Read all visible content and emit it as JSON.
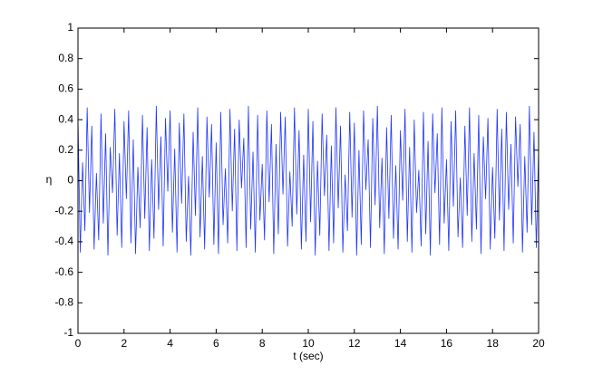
{
  "chart_data": {
    "type": "line",
    "xlabel": "t (sec)",
    "ylabel": "η",
    "xlim": [
      0,
      20
    ],
    "xticks": [
      0,
      2,
      4,
      6,
      8,
      10,
      12,
      14,
      16,
      18,
      20
    ],
    "ylim": [
      -1,
      1
    ],
    "yticks": [
      -1,
      -0.8,
      -0.6,
      -0.4,
      -0.2,
      0,
      0.2,
      0.4,
      0.6,
      0.8,
      1
    ],
    "x": [
      0,
      0.1,
      0.2,
      0.3,
      0.4,
      0.5,
      0.6,
      0.7,
      0.8,
      0.9,
      1,
      1.1,
      1.2,
      1.3,
      1.4,
      1.5,
      1.6,
      1.7,
      1.8,
      1.9,
      2,
      2.1,
      2.2,
      2.3,
      2.4,
      2.5,
      2.6,
      2.7,
      2.8,
      2.9,
      3,
      3.1,
      3.2,
      3.3,
      3.4,
      3.5,
      3.6,
      3.7,
      3.8,
      3.9,
      4,
      4.1,
      4.2,
      4.3,
      4.4,
      4.5,
      4.6,
      4.7,
      4.8,
      4.9,
      5,
      5.1,
      5.2,
      5.3,
      5.4,
      5.5,
      5.6,
      5.7,
      5.8,
      5.9,
      6,
      6.1,
      6.2,
      6.3,
      6.4,
      6.5,
      6.6,
      6.7,
      6.8,
      6.9,
      7,
      7.1,
      7.2,
      7.3,
      7.4,
      7.5,
      7.6,
      7.7,
      7.8,
      7.9,
      8,
      8.1,
      8.2,
      8.3,
      8.4,
      8.5,
      8.6,
      8.7,
      8.8,
      8.9,
      9,
      9.1,
      9.2,
      9.3,
      9.4,
      9.5,
      9.6,
      9.7,
      9.8,
      9.9,
      10,
      10.1,
      10.2,
      10.3,
      10.4,
      10.5,
      10.6,
      10.7,
      10.8,
      10.9,
      11,
      11.1,
      11.2,
      11.3,
      11.4,
      11.5,
      11.6,
      11.7,
      11.8,
      11.9,
      12,
      12.1,
      12.2,
      12.3,
      12.4,
      12.5,
      12.6,
      12.7,
      12.8,
      12.9,
      13,
      13.1,
      13.2,
      13.3,
      13.4,
      13.5,
      13.6,
      13.7,
      13.8,
      13.9,
      14,
      14.1,
      14.2,
      14.3,
      14.4,
      14.5,
      14.6,
      14.7,
      14.8,
      14.9,
      15,
      15.1,
      15.2,
      15.3,
      15.4,
      15.5,
      15.6,
      15.7,
      15.8,
      15.9,
      16,
      16.1,
      16.2,
      16.3,
      16.4,
      16.5,
      16.6,
      16.7,
      16.8,
      16.9,
      17,
      17.1,
      17.2,
      17.3,
      17.4,
      17.5,
      17.6,
      17.7,
      17.8,
      17.9,
      18,
      18.1,
      18.2,
      18.3,
      18.4,
      18.5,
      18.6,
      18.7,
      18.8,
      18.9,
      19,
      19.1,
      19.2,
      19.3,
      19.4,
      19.5,
      19.6,
      19.7,
      19.8,
      19.9,
      20
    ],
    "series": [
      {
        "color": "#1f35ff",
        "values": [
          0.41,
          -0.47,
          0.12,
          -0.33,
          0.48,
          -0.21,
          0.36,
          -0.45,
          0.05,
          -0.39,
          0.44,
          -0.28,
          0.31,
          -0.49,
          0.22,
          -0.08,
          0.47,
          -0.36,
          0.18,
          -0.44,
          0.39,
          -0.12,
          0.46,
          -0.41,
          0.27,
          -0.48,
          0.09,
          -0.31,
          0.43,
          -0.25,
          0.35,
          -0.46,
          0.14,
          -0.38,
          0.49,
          -0.19,
          0.29,
          -0.43,
          0.41,
          -0.07,
          0.46,
          -0.34,
          0.21,
          -0.47,
          0.38,
          -0.15,
          0.44,
          -0.4,
          0.03,
          -0.49,
          0.32,
          -0.23,
          0.48,
          -0.37,
          0.16,
          -0.45,
          0.42,
          -0.11,
          0.37,
          -0.42,
          0.25,
          -0.48,
          0.45,
          -0.29,
          0.08,
          -0.41,
          0.47,
          -0.2,
          0.34,
          -0.46,
          0.4,
          -0.05,
          0.28,
          -0.44,
          0.49,
          -0.32,
          0.19,
          -0.47,
          0.43,
          -0.26,
          0.11,
          -0.39,
          0.46,
          -0.14,
          0.37,
          -0.48,
          0.24,
          -0.35,
          0.45,
          -0.09,
          0.42,
          -0.43,
          0.06,
          -0.3,
          0.48,
          -0.22,
          0.33,
          -0.45,
          0.17,
          -0.4,
          0.47,
          -0.27,
          0.39,
          -0.49,
          0.13,
          -0.36,
          0.44,
          -0.1,
          0.3,
          -0.46,
          0.23,
          -0.41,
          0.48,
          -0.18,
          0.36,
          -0.47,
          0.04,
          -0.33,
          0.45,
          -0.24,
          0.38,
          -0.49,
          0.2,
          -0.42,
          0.46,
          -0.06,
          0.27,
          -0.44,
          0.41,
          -0.16,
          0.49,
          -0.31,
          0.15,
          -0.48,
          0.35,
          -0.25,
          0.43,
          -0.38,
          0.1,
          -0.45,
          0.33,
          -0.13,
          0.47,
          -0.4,
          0.22,
          -0.47,
          0.4,
          -0.21,
          0.07,
          -0.43,
          0.45,
          -0.35,
          0.26,
          -0.49,
          0.44,
          -0.08,
          0.31,
          -0.42,
          0.48,
          -0.28,
          0.14,
          -0.46,
          0.39,
          -0.17,
          0.46,
          -0.37,
          0.02,
          -0.44,
          0.36,
          -0.23,
          0.48,
          -0.4,
          0.18,
          -0.32,
          0.43,
          -0.48,
          0.29,
          -0.12,
          0.41,
          -0.45,
          0.09,
          -0.38,
          0.47,
          -0.26,
          0.34,
          -0.46,
          0.45,
          -0.19,
          0.24,
          -0.41,
          0.42,
          -0.04,
          0.37,
          -0.47,
          0.16,
          -0.34,
          0.49,
          -0.29,
          0.32,
          -0.44,
          0.2
        ]
      }
    ]
  }
}
